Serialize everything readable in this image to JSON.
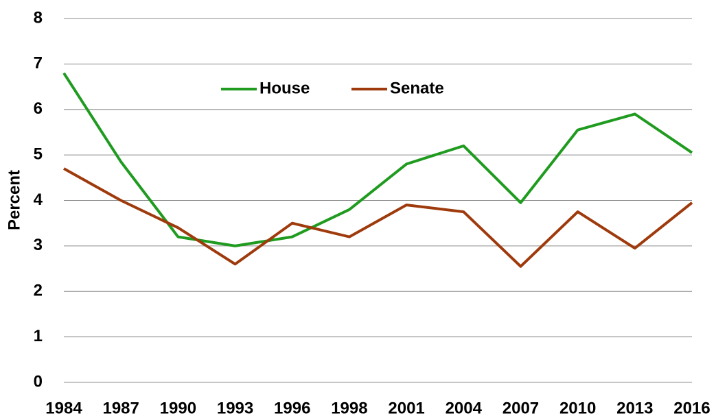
{
  "chart_data": {
    "type": "line",
    "y_label": "Percent",
    "categories": [
      "1984",
      "1987",
      "1990",
      "1993",
      "1996",
      "1998",
      "2001",
      "2004",
      "2007",
      "2010",
      "2013",
      "2016"
    ],
    "series": [
      {
        "name": "House",
        "color": "#1f9b1f",
        "values": [
          6.8,
          4.85,
          3.2,
          3.0,
          3.2,
          3.8,
          4.8,
          5.2,
          3.95,
          5.55,
          5.9,
          5.05
        ]
      },
      {
        "name": "Senate",
        "color": "#9e3a0c",
        "values": [
          4.7,
          4.0,
          3.4,
          2.6,
          3.5,
          3.2,
          3.9,
          3.75,
          2.55,
          3.75,
          2.95,
          3.95
        ]
      }
    ],
    "ylim": [
      0,
      8
    ],
    "yticks": [
      0,
      1,
      2,
      3,
      4,
      5,
      6,
      7,
      8
    ],
    "grid": true,
    "legend": "top"
  }
}
